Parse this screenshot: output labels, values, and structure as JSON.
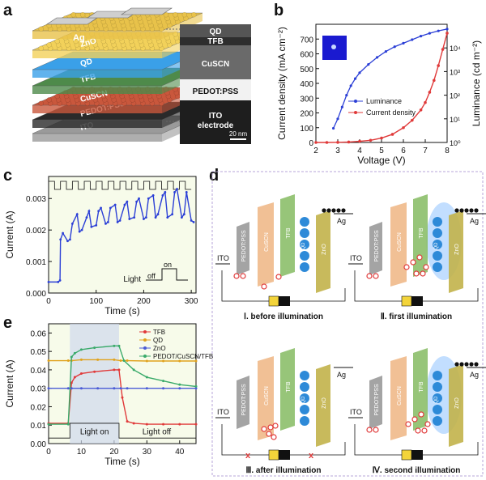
{
  "panel_letters": {
    "a": "a",
    "b": "b",
    "c": "c",
    "d": "d",
    "e": "e"
  },
  "panel_a": {
    "layers": [
      "Ag",
      "ZnO",
      "QD",
      "TFB",
      "CuSCN",
      "PEDOT:PSS",
      "ITO"
    ],
    "tem_labels": [
      "QD",
      "TFB",
      "CuSCN",
      "PEDOT:PSS",
      "ITO",
      "electrode"
    ],
    "scale_bar": "20 nm",
    "colors": {
      "ag": "#e8c24a",
      "zno": "#f2d15a",
      "qd": "#3aa0e8",
      "tfb": "#4e8a4a",
      "cuscn": "#c9573c",
      "pedot": "#2a2a2a",
      "ito": "#9a9a9a"
    }
  },
  "chart_data": [
    {
      "id": "b",
      "type": "line",
      "xlabel": "Voltage (V)",
      "ylabel": "Current density (mA cm⁻²)",
      "y2label": "Luminance (cd m⁻²)",
      "xlim": [
        2,
        8
      ],
      "ylim": [
        0,
        800
      ],
      "y2lim_log": [
        0,
        5
      ],
      "xticks": [
        "2",
        "3",
        "4",
        "5",
        "6",
        "7",
        "8"
      ],
      "yticks": [
        "0",
        "100",
        "200",
        "300",
        "400",
        "500",
        "600",
        "700"
      ],
      "y2ticks": [
        "10⁰",
        "10¹",
        "10²",
        "10³",
        "10⁴"
      ],
      "legend_position": "center",
      "series": [
        {
          "name": "Luminance",
          "axis": "right_log",
          "color": "#2b3fd6",
          "x": [
            2.8,
            3.0,
            3.2,
            3.4,
            3.6,
            3.8,
            4.0,
            4.4,
            4.8,
            5.2,
            5.6,
            6.0,
            6.4,
            6.8,
            7.2,
            7.6,
            8.0
          ],
          "y": [
            0.6,
            1.0,
            1.5,
            2.0,
            2.4,
            2.7,
            2.95,
            3.3,
            3.6,
            3.85,
            4.05,
            4.2,
            4.35,
            4.5,
            4.62,
            4.72,
            4.8
          ]
        },
        {
          "name": "Current density",
          "axis": "left",
          "color": "#e03a3a",
          "x": [
            2.0,
            2.5,
            3.0,
            3.5,
            4.0,
            4.5,
            5.0,
            5.5,
            6.0,
            6.4,
            6.8,
            7.0,
            7.2,
            7.4,
            7.6,
            7.8,
            8.0
          ],
          "y": [
            0,
            0,
            1,
            3,
            8,
            15,
            30,
            55,
            100,
            150,
            220,
            270,
            340,
            420,
            520,
            630,
            740
          ]
        }
      ]
    },
    {
      "id": "c",
      "type": "line",
      "xlabel": "Time (s)",
      "ylabel": "Current (A)",
      "xlim": [
        0,
        310
      ],
      "ylim": [
        0,
        0.0037
      ],
      "xticks": [
        "0",
        "100",
        "200",
        "300"
      ],
      "yticks": [
        "0.000",
        "0.001",
        "0.002",
        "0.003"
      ],
      "inset_labels": {
        "light": "Light",
        "off": "off",
        "on": "on"
      },
      "series": [
        {
          "name": "Current",
          "color": "#2b3fd6",
          "x": [
            0,
            20,
            24,
            25,
            30,
            40,
            45,
            50,
            60,
            65,
            70,
            80,
            85,
            90,
            100,
            105,
            110,
            120,
            125,
            130,
            140,
            145,
            150,
            160,
            165,
            170,
            180,
            185,
            190,
            200,
            205,
            210,
            220,
            225,
            230,
            240,
            245,
            250,
            260,
            265,
            270,
            280,
            285,
            290,
            300,
            305
          ],
          "y": [
            0.00035,
            0.00035,
            0.0004,
            0.0017,
            0.0019,
            0.00165,
            0.0017,
            0.0022,
            0.0025,
            0.00195,
            0.002,
            0.0024,
            0.0026,
            0.0021,
            0.00215,
            0.0026,
            0.0027,
            0.0022,
            0.00225,
            0.0027,
            0.0028,
            0.00225,
            0.0023,
            0.0028,
            0.0029,
            0.00235,
            0.0024,
            0.0029,
            0.003,
            0.00235,
            0.0024,
            0.003,
            0.0031,
            0.0024,
            0.0025,
            0.0031,
            0.0032,
            0.0024,
            0.0025,
            0.0032,
            0.0033,
            0.0024,
            0.0025,
            0.0032,
            0.0023,
            0.00225
          ]
        }
      ]
    },
    {
      "id": "e",
      "type": "line",
      "xlabel": "Time (s)",
      "ylabel": "Current (A)",
      "xlim": [
        0,
        45
      ],
      "ylim": [
        0,
        0.065
      ],
      "xticks": [
        "0",
        "10",
        "20",
        "30",
        "40"
      ],
      "yticks": [
        "0.00",
        "0.01",
        "0.02",
        "0.03",
        "0.04",
        "0.05",
        "0.06"
      ],
      "light_on_label": "Light on",
      "light_off_label": "Light off",
      "legend_position": "top-right",
      "series": [
        {
          "name": "TFB",
          "color": "#e03a3a",
          "x": [
            0,
            6,
            7,
            8,
            10,
            14,
            20,
            21.5,
            22.5,
            24,
            26,
            30,
            35,
            40,
            45
          ],
          "y": [
            0.011,
            0.011,
            0.033,
            0.036,
            0.038,
            0.039,
            0.04,
            0.04,
            0.025,
            0.012,
            0.011,
            0.0105,
            0.0105,
            0.0105,
            0.0105
          ]
        },
        {
          "name": "QD",
          "color": "#e0a21c",
          "x": [
            0,
            6,
            7,
            10,
            15,
            20,
            22,
            24,
            30,
            35,
            40,
            45
          ],
          "y": [
            0.045,
            0.045,
            0.045,
            0.0455,
            0.0455,
            0.0455,
            0.045,
            0.045,
            0.0448,
            0.0448,
            0.0448,
            0.0448
          ]
        },
        {
          "name": "ZnO",
          "color": "#4a5bd6",
          "x": [
            0,
            6,
            7,
            10,
            15,
            20,
            22,
            24,
            30,
            35,
            40,
            45
          ],
          "y": [
            0.03,
            0.03,
            0.03,
            0.03,
            0.03,
            0.03,
            0.03,
            0.03,
            0.03,
            0.03,
            0.03,
            0.03
          ]
        },
        {
          "name": "PEDOT/CuSCN/TFB",
          "color": "#3aaa6a",
          "x": [
            0,
            6,
            7,
            8,
            10,
            14,
            20,
            21.5,
            23,
            26,
            30,
            35,
            40,
            45
          ],
          "y": [
            0.0105,
            0.0105,
            0.047,
            0.049,
            0.051,
            0.052,
            0.053,
            0.053,
            0.045,
            0.04,
            0.036,
            0.034,
            0.032,
            0.031
          ]
        }
      ]
    }
  ],
  "panel_d": {
    "layers": [
      "PEDOT:PSS",
      "CuSCN",
      "TFB",
      "QD",
      "ZnO"
    ],
    "ito": "ITO",
    "ag": "Ag",
    "qd": "QD",
    "captions": [
      "Ⅰ. before illumination",
      "Ⅱ. first illumination",
      "Ⅲ. after illumination",
      "Ⅳ. second illumination"
    ],
    "cross": "x",
    "colors": {
      "pedot": "#9a9a9a",
      "cuscn": "#f0b98a",
      "tfb": "#8cbf6a",
      "zno": "#c2b34a",
      "qd": "#2e8ad8",
      "hole": "#e03a3a",
      "border": "#b7a6d8"
    }
  }
}
